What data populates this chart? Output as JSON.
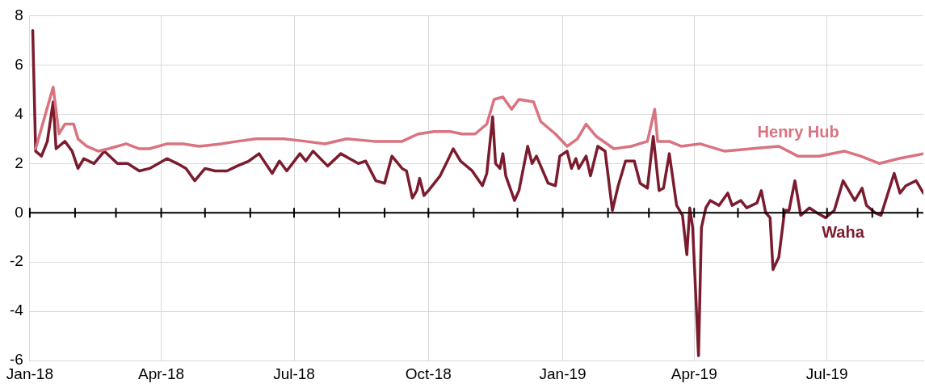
{
  "chart_data": {
    "type": "line",
    "xlim": [
      "2018-01-01",
      "2019-09-05"
    ],
    "xticks": [
      {
        "value": "2018-01-01",
        "label": "Jan-18"
      },
      {
        "value": "2018-02-01",
        "label": null
      },
      {
        "value": "2018-03-01",
        "label": null
      },
      {
        "value": "2018-04-01",
        "label": "Apr-18"
      },
      {
        "value": "2018-05-01",
        "label": null
      },
      {
        "value": "2018-06-01",
        "label": null
      },
      {
        "value": "2018-07-01",
        "label": "Jul-18"
      },
      {
        "value": "2018-08-01",
        "label": null
      },
      {
        "value": "2018-09-01",
        "label": null
      },
      {
        "value": "2018-10-01",
        "label": "Oct-18"
      },
      {
        "value": "2018-11-01",
        "label": null
      },
      {
        "value": "2018-12-01",
        "label": null
      },
      {
        "value": "2019-01-01",
        "label": "Jan-19"
      },
      {
        "value": "2019-02-01",
        "label": null
      },
      {
        "value": "2019-03-01",
        "label": null
      },
      {
        "value": "2019-04-01",
        "label": "Apr-19"
      },
      {
        "value": "2019-05-01",
        "label": null
      },
      {
        "value": "2019-06-01",
        "label": null
      },
      {
        "value": "2019-07-01",
        "label": "Jul-19"
      },
      {
        "value": "2019-08-01",
        "label": null
      },
      {
        "value": "2019-09-01",
        "label": null
      }
    ],
    "ylim": [
      -6,
      8
    ],
    "yticks": [
      -6,
      -4,
      -2,
      0,
      2,
      4,
      6,
      8
    ],
    "grid": true,
    "legend": false,
    "marker": "none",
    "line_style": "solid",
    "series": [
      {
        "name": "Henry Hub",
        "color": "#d9737f",
        "x": [
          "2018-01-05",
          "2018-01-17",
          "2018-01-21",
          "2018-01-25",
          "2018-01-31",
          "2018-02-03",
          "2018-02-09",
          "2018-02-17",
          "2018-02-24",
          "2018-03-08",
          "2018-03-17",
          "2018-03-24",
          "2018-04-05",
          "2018-04-16",
          "2018-04-27",
          "2018-05-12",
          "2018-05-23",
          "2018-06-05",
          "2018-06-24",
          "2018-07-09",
          "2018-07-22",
          "2018-08-06",
          "2018-08-25",
          "2018-09-13",
          "2018-09-24",
          "2018-10-05",
          "2018-10-16",
          "2018-10-24",
          "2018-11-02",
          "2018-11-10",
          "2018-11-15",
          "2018-11-21",
          "2018-11-27",
          "2018-12-02",
          "2018-12-12",
          "2018-12-17",
          "2018-12-27",
          "2019-01-04",
          "2019-01-11",
          "2019-01-17",
          "2019-01-24",
          "2019-02-05",
          "2019-02-17",
          "2019-02-28",
          "2019-03-05",
          "2019-03-07",
          "2019-03-15",
          "2019-03-23",
          "2019-04-05",
          "2019-04-22",
          "2019-05-10",
          "2019-05-29",
          "2019-06-11",
          "2019-06-26",
          "2019-07-13",
          "2019-07-24",
          "2019-08-06",
          "2019-08-19",
          "2019-09-05"
        ],
        "values": [
          2.6,
          5.1,
          3.2,
          3.6,
          3.6,
          3.0,
          2.7,
          2.5,
          2.6,
          2.8,
          2.6,
          2.6,
          2.8,
          2.8,
          2.7,
          2.8,
          2.9,
          3.0,
          3.0,
          2.9,
          2.8,
          3.0,
          2.9,
          2.9,
          3.2,
          3.3,
          3.3,
          3.2,
          3.2,
          3.6,
          4.6,
          4.7,
          4.2,
          4.6,
          4.5,
          3.7,
          3.2,
          2.7,
          3.0,
          3.6,
          3.1,
          2.6,
          2.7,
          2.9,
          4.2,
          2.9,
          2.9,
          2.7,
          2.8,
          2.5,
          2.6,
          2.7,
          2.3,
          2.3,
          2.5,
          2.3,
          2.0,
          2.2,
          2.4
        ]
      },
      {
        "name": "Waha",
        "color": "#7b1c2e",
        "x": [
          "2018-01-03",
          "2018-01-05",
          "2018-01-09",
          "2018-01-13",
          "2018-01-17",
          "2018-01-19",
          "2018-01-25",
          "2018-01-30",
          "2018-02-03",
          "2018-02-07",
          "2018-02-14",
          "2018-02-21",
          "2018-03-02",
          "2018-03-09",
          "2018-03-17",
          "2018-03-24",
          "2018-04-05",
          "2018-04-12",
          "2018-04-18",
          "2018-04-24",
          "2018-05-01",
          "2018-05-08",
          "2018-05-16",
          "2018-05-23",
          "2018-05-31",
          "2018-06-07",
          "2018-06-16",
          "2018-06-21",
          "2018-06-26",
          "2018-07-05",
          "2018-07-09",
          "2018-07-14",
          "2018-07-24",
          "2018-08-02",
          "2018-08-08",
          "2018-08-14",
          "2018-08-19",
          "2018-08-26",
          "2018-09-01",
          "2018-09-06",
          "2018-09-13",
          "2018-09-16",
          "2018-09-20",
          "2018-09-23",
          "2018-09-25",
          "2018-09-28",
          "2018-10-01",
          "2018-10-09",
          "2018-10-14",
          "2018-10-18",
          "2018-10-23",
          "2018-10-31",
          "2018-11-07",
          "2018-11-10",
          "2018-11-14",
          "2018-11-16",
          "2018-11-19",
          "2018-11-21",
          "2018-11-23",
          "2018-11-29",
          "2018-12-02",
          "2018-12-08",
          "2018-12-11",
          "2018-12-14",
          "2018-12-22",
          "2018-12-27",
          "2018-12-30",
          "2019-01-04",
          "2019-01-07",
          "2019-01-10",
          "2019-01-12",
          "2019-01-17",
          "2019-01-20",
          "2019-01-25",
          "2019-01-30",
          "2019-02-04",
          "2019-02-08",
          "2019-02-13",
          "2019-02-19",
          "2019-02-23",
          "2019-02-28",
          "2019-03-04",
          "2019-03-08",
          "2019-03-11",
          "2019-03-15",
          "2019-03-20",
          "2019-03-24",
          "2019-03-27",
          "2019-03-29",
          "2019-03-31",
          "2019-04-04",
          "2019-04-06",
          "2019-04-09",
          "2019-04-12",
          "2019-04-18",
          "2019-04-24",
          "2019-04-27",
          "2019-05-03",
          "2019-05-07",
          "2019-05-14",
          "2019-05-17",
          "2019-05-20",
          "2019-05-23",
          "2019-05-25",
          "2019-05-29",
          "2019-06-02",
          "2019-06-05",
          "2019-06-09",
          "2019-06-13",
          "2019-06-19",
          "2019-06-24",
          "2019-06-30",
          "2019-07-06",
          "2019-07-12",
          "2019-07-17",
          "2019-07-20",
          "2019-07-25",
          "2019-07-28",
          "2019-08-03",
          "2019-08-07",
          "2019-08-16",
          "2019-08-20",
          "2019-08-24",
          "2019-08-31",
          "2019-09-05"
        ],
        "values": [
          7.4,
          2.5,
          2.3,
          2.9,
          4.5,
          2.6,
          2.9,
          2.5,
          1.8,
          2.2,
          2.0,
          2.5,
          2.0,
          2.0,
          1.7,
          1.8,
          2.2,
          2.0,
          1.8,
          1.3,
          1.8,
          1.7,
          1.7,
          1.9,
          2.1,
          2.4,
          1.6,
          2.1,
          1.7,
          2.4,
          2.1,
          2.5,
          1.9,
          2.4,
          2.2,
          2.0,
          2.1,
          1.3,
          1.2,
          2.3,
          1.8,
          1.7,
          0.6,
          0.9,
          1.4,
          0.7,
          0.9,
          1.5,
          2.1,
          2.6,
          2.1,
          1.7,
          1.1,
          1.6,
          3.9,
          2.0,
          1.8,
          2.4,
          1.5,
          0.5,
          0.9,
          2.7,
          2.0,
          2.3,
          1.2,
          1.1,
          2.3,
          2.5,
          1.8,
          2.2,
          1.8,
          2.3,
          1.5,
          2.7,
          2.5,
          0.1,
          1.1,
          2.1,
          2.1,
          1.2,
          1.0,
          3.1,
          0.9,
          1.0,
          2.4,
          0.3,
          -0.1,
          -1.7,
          0.2,
          -0.6,
          -5.8,
          -0.6,
          0.2,
          0.5,
          0.3,
          0.8,
          0.3,
          0.5,
          0.2,
          0.4,
          0.9,
          0.0,
          -0.2,
          -2.3,
          -1.8,
          0.1,
          0.1,
          1.3,
          -0.1,
          0.2,
          0.0,
          -0.2,
          0.1,
          1.3,
          0.8,
          0.5,
          1.0,
          0.3,
          0.0,
          -0.1,
          1.6,
          0.8,
          1.1,
          1.3,
          0.8
        ]
      }
    ]
  }
}
